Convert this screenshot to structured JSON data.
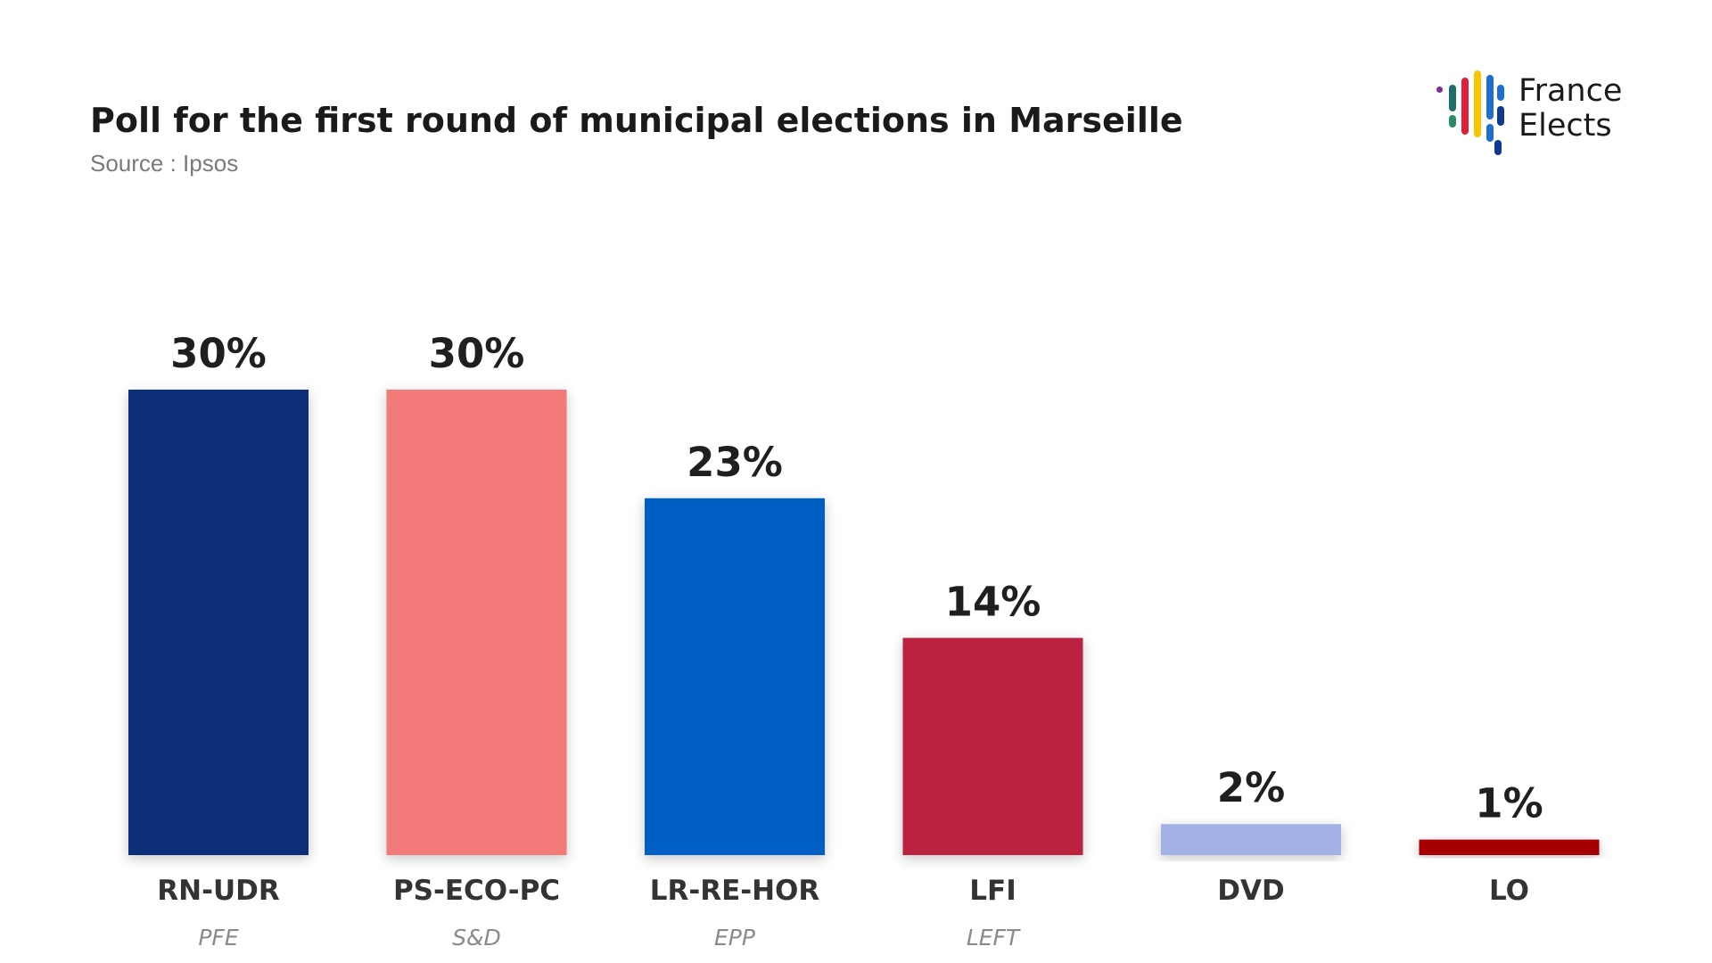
{
  "logo": [
    "France",
    "Elects"
  ],
  "chart_data": {
    "type": "bar",
    "title": "Poll for the first round of municipal elections in Marseille",
    "subtitle": "Source : Ipsos",
    "categories": [
      "RN-UDR",
      "PS-ECO-PC",
      "LR-RE-HOR",
      "LFI",
      "DVD",
      "LO"
    ],
    "groups": [
      "PFE",
      "S&D",
      "EPP",
      "LEFT",
      null,
      null
    ],
    "values": [
      30,
      30,
      23,
      14,
      2,
      1
    ],
    "value_labels": [
      "30%",
      "30%",
      "23%",
      "14%",
      "2%",
      "1%"
    ],
    "colors": [
      "#0c2d78",
      "#f27a78",
      "#005fc4",
      "#bb2040",
      "#a3b2e6",
      "#a60000"
    ]
  }
}
